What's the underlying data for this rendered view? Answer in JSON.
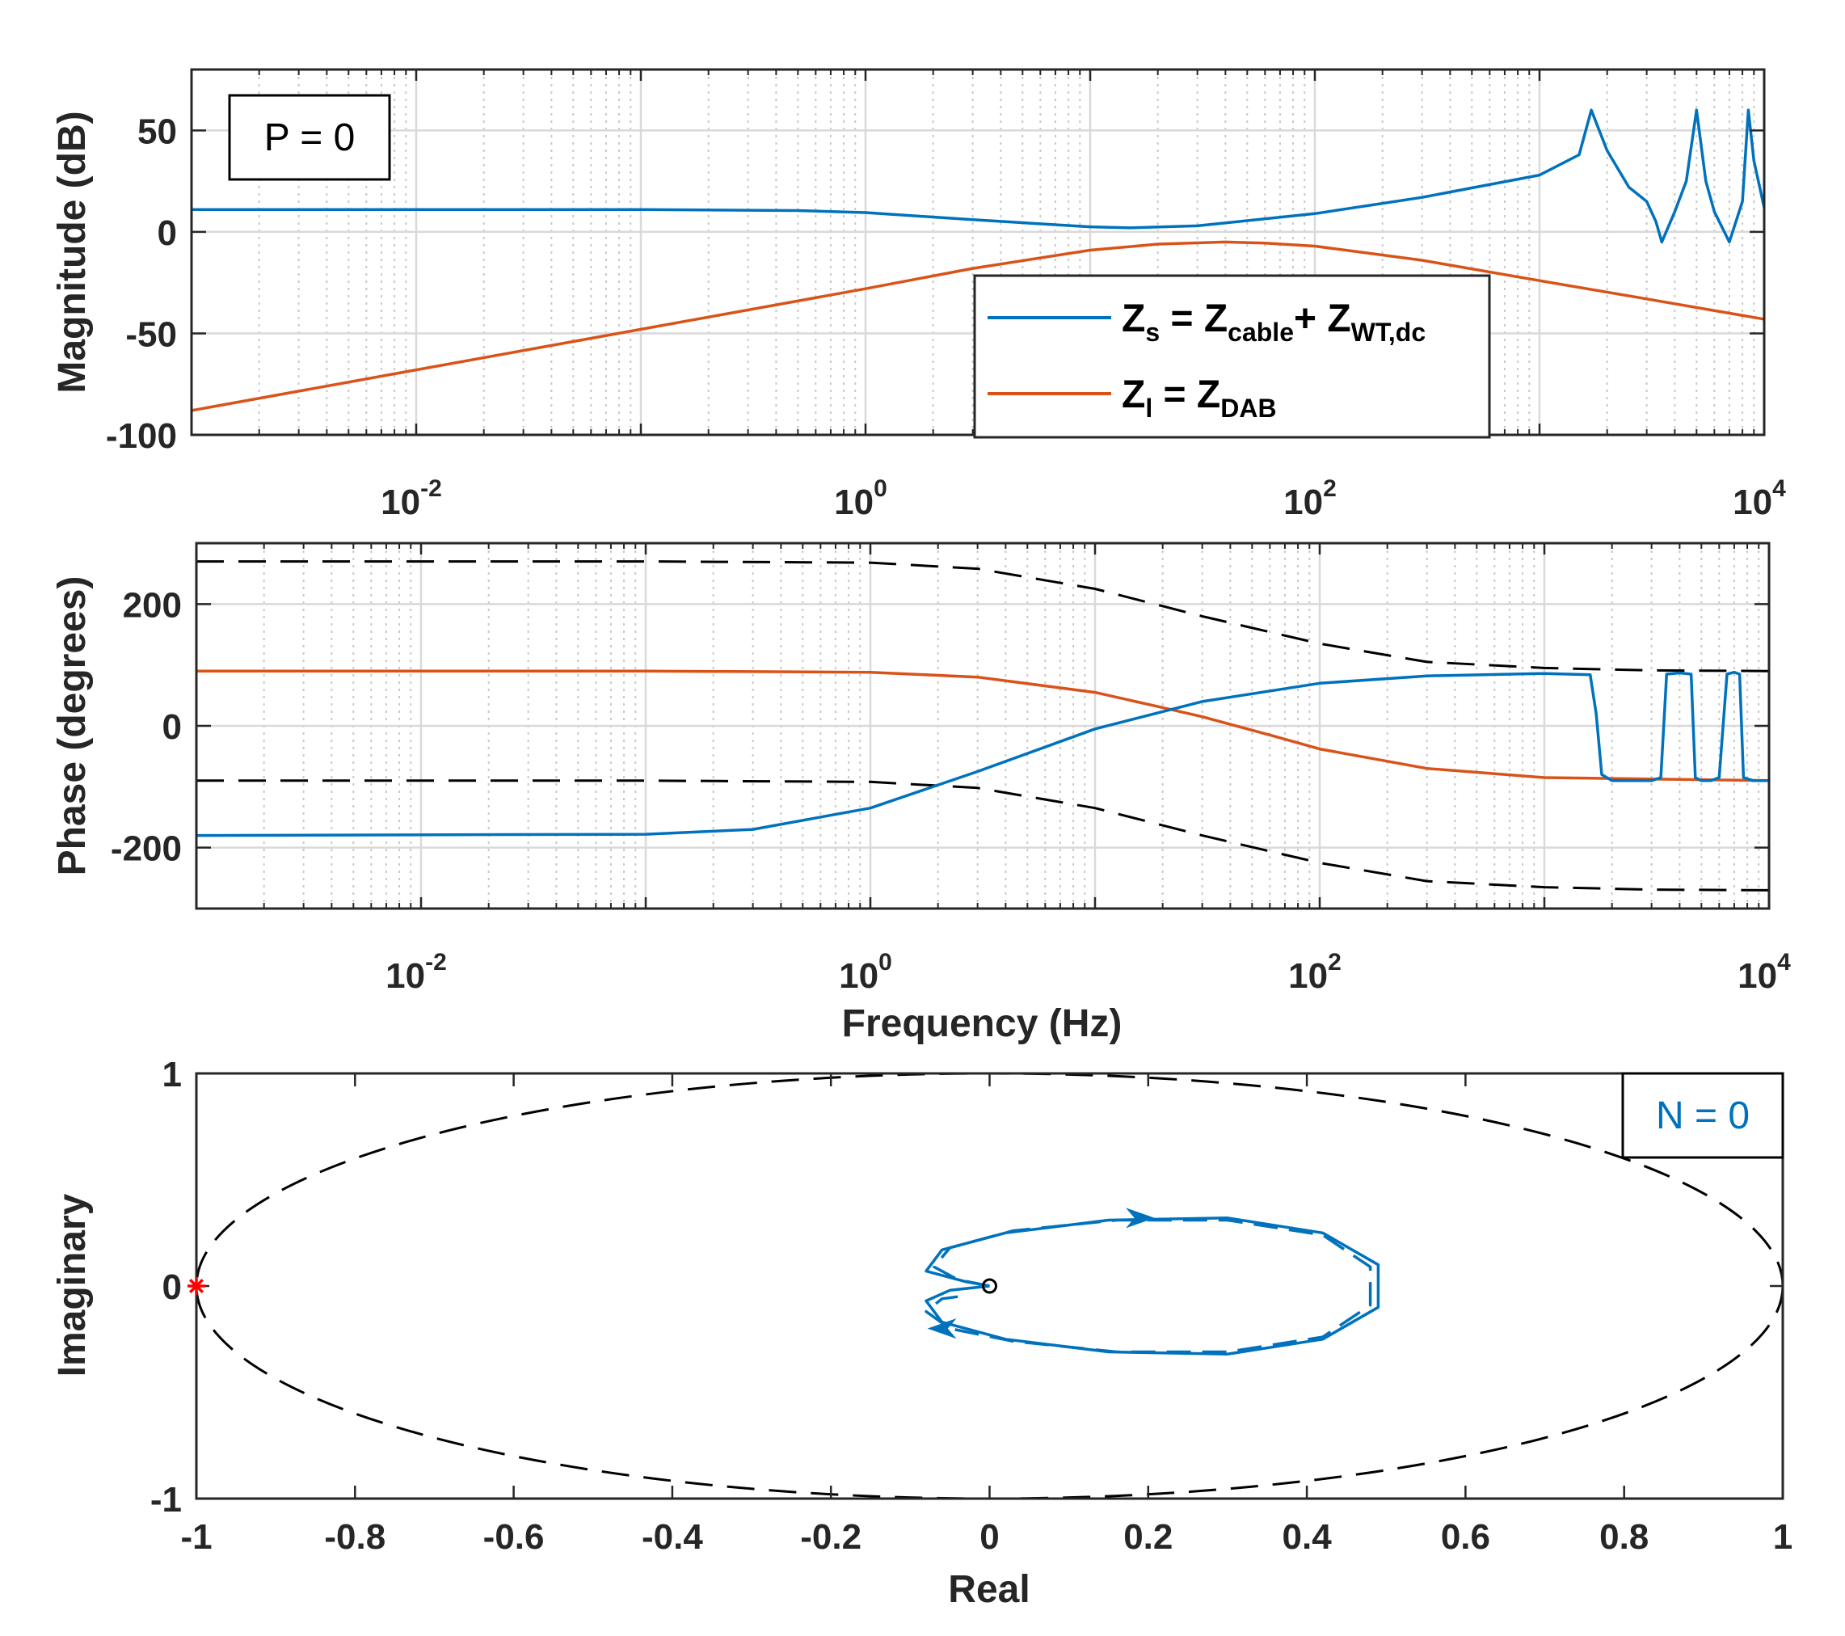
{
  "chart_data": [
    {
      "type": "line",
      "title": "",
      "xlabel": "",
      "ylabel": "Magnitude (dB)",
      "xscale": "log",
      "xlim": [
        0.001,
        10000
      ],
      "ylim": [
        -100,
        80
      ],
      "grid": true,
      "xtick_labels": [
        {
          "value": 0.01,
          "base": "10",
          "exp": "-2"
        },
        {
          "value": 1,
          "base": "10",
          "exp": "0"
        },
        {
          "value": 100,
          "base": "10",
          "exp": "2"
        },
        {
          "value": 10000,
          "base": "10",
          "exp": "4"
        }
      ],
      "ytick_labels": [
        {
          "value": 50,
          "label": "50"
        },
        {
          "value": 0,
          "label": "0"
        },
        {
          "value": -50,
          "label": "-50"
        },
        {
          "value": -100,
          "label": "-100"
        }
      ],
      "annotation": "P = 0",
      "legend": {
        "position": "bottom-right",
        "entries": [
          {
            "main": "Z",
            "sub": "s",
            "mid": " = Z",
            "sub2": "cable",
            "tail": "+ Z",
            "sub3": "WT,dc",
            "color": "#0072BD"
          },
          {
            "main": "Z",
            "sub": "l",
            "mid": " = Z",
            "sub2": "DAB",
            "tail": "",
            "sub3": "",
            "color": "#D95319"
          }
        ]
      },
      "series": [
        {
          "name": "Zs = Zcable + ZWT,dc",
          "color": "#0072BD",
          "x": [
            0.001,
            0.01,
            0.1,
            0.5,
            1,
            3,
            10,
            15,
            30,
            100,
            300,
            1000,
            1500,
            1700,
            2000,
            2500,
            3000,
            3300,
            3500,
            4000,
            4500,
            5000,
            5500,
            6000,
            7000,
            8000,
            8500,
            9000,
            10000
          ],
          "values": [
            11,
            11,
            11,
            10.5,
            9.5,
            6,
            2.5,
            2,
            3,
            9,
            17,
            28,
            38,
            60,
            40,
            22,
            15,
            5,
            -5,
            10,
            25,
            60,
            25,
            10,
            -5,
            15,
            60,
            35,
            12
          ]
        },
        {
          "name": "Zl = ZDAB",
          "color": "#D95319",
          "x": [
            0.001,
            0.01,
            0.1,
            1,
            3,
            10,
            20,
            40,
            60,
            100,
            300,
            1000,
            3000,
            10000
          ],
          "values": [
            -88,
            -68,
            -48,
            -28,
            -18,
            -9,
            -6,
            -5,
            -5.5,
            -7,
            -14,
            -24,
            -33,
            -43
          ]
        }
      ]
    },
    {
      "type": "line",
      "title": "",
      "xlabel": "Frequency (Hz)",
      "ylabel": "Phase (degrees)",
      "xscale": "log",
      "xlim": [
        0.001,
        10000
      ],
      "ylim": [
        -300,
        300
      ],
      "grid": true,
      "xtick_labels": [
        {
          "value": 0.01,
          "base": "10",
          "exp": "-2"
        },
        {
          "value": 1,
          "base": "10",
          "exp": "0"
        },
        {
          "value": 100,
          "base": "10",
          "exp": "2"
        },
        {
          "value": 10000,
          "base": "10",
          "exp": "4"
        }
      ],
      "ytick_labels": [
        {
          "value": 200,
          "label": "200"
        },
        {
          "value": 0,
          "label": "0"
        },
        {
          "value": -200,
          "label": "-200"
        }
      ],
      "series": [
        {
          "name": "upper bound",
          "color": "#000000",
          "dashed": true,
          "x": [
            0.001,
            0.1,
            1,
            3,
            10,
            30,
            100,
            300,
            1000,
            3000,
            10000
          ],
          "values": [
            270,
            270,
            268,
            258,
            225,
            180,
            135,
            105,
            95,
            91,
            90
          ]
        },
        {
          "name": "lower bound",
          "color": "#000000",
          "dashed": true,
          "x": [
            0.001,
            0.1,
            1,
            3,
            10,
            30,
            100,
            300,
            1000,
            3000,
            10000
          ],
          "values": [
            -90,
            -90,
            -92,
            -102,
            -135,
            -180,
            -225,
            -255,
            -265,
            -269,
            -270
          ]
        },
        {
          "name": "Zl = ZDAB phase",
          "color": "#D95319",
          "x": [
            0.001,
            0.1,
            1,
            3,
            10,
            20,
            30,
            60,
            100,
            300,
            1000,
            10000
          ],
          "values": [
            90,
            90,
            88,
            80,
            55,
            30,
            15,
            -15,
            -38,
            -70,
            -85,
            -90
          ]
        },
        {
          "name": "Zs phase",
          "color": "#0072BD",
          "x": [
            0.001,
            0.1,
            0.3,
            1,
            3,
            10,
            30,
            100,
            300,
            1000,
            1600,
            1700,
            1800,
            2000,
            2500,
            3000,
            3300,
            3500,
            4000,
            4500,
            4700,
            5000,
            5500,
            6000,
            6500,
            7000,
            7400,
            7700,
            8500,
            9000,
            9300,
            10000
          ],
          "values": [
            -180,
            -178,
            -170,
            -135,
            -75,
            -5,
            40,
            70,
            82,
            86,
            84,
            20,
            -80,
            -90,
            -90,
            -90,
            -85,
            85,
            87,
            85,
            -85,
            -90,
            -90,
            -85,
            85,
            88,
            85,
            -85,
            -90,
            -90,
            -90,
            -90
          ]
        }
      ]
    },
    {
      "type": "line",
      "title": "",
      "xlabel": "Real",
      "ylabel": "Imaginary",
      "xlim": [
        -1,
        1
      ],
      "ylim": [
        -1,
        1
      ],
      "xtick_labels": [
        "-1",
        "-0.8",
        "-0.6",
        "-0.4",
        "-0.2",
        "0",
        "0.2",
        "0.4",
        "0.6",
        "0.8",
        "1"
      ],
      "ytick_labels": [
        "1",
        "0",
        "-1"
      ],
      "annotation": "N = 0",
      "critical_point": {
        "x": -1,
        "y": 0,
        "marker": "*",
        "color": "#FF0000"
      },
      "series": [
        {
          "name": "unit circle",
          "color": "#000000",
          "dashed": true,
          "shape": "circle",
          "center": [
            0,
            0
          ],
          "radius": 1
        },
        {
          "name": "Nyquist positive",
          "color": "#0072BD",
          "x": [
            0,
            -0.03,
            -0.08,
            -0.06,
            0.02,
            0.15,
            0.3,
            0.42,
            0.49,
            0.49,
            0.42,
            0.3,
            0.15,
            0.02,
            -0.06,
            -0.08,
            -0.05,
            0
          ],
          "values": [
            0,
            0.02,
            0.07,
            0.17,
            0.25,
            0.31,
            0.32,
            0.25,
            0.1,
            -0.1,
            -0.25,
            -0.32,
            -0.31,
            -0.25,
            -0.17,
            -0.07,
            -0.02,
            0
          ]
        },
        {
          "name": "Nyquist negative",
          "color": "#0072BD",
          "dashed": true,
          "x": [
            0,
            -0.04,
            -0.07,
            -0.05,
            0.03,
            0.16,
            0.3,
            0.42,
            0.48,
            0.48,
            0.42,
            0.3,
            0.16,
            0.03,
            -0.05,
            -0.08,
            -0.06,
            -0.04
          ],
          "values": [
            0,
            0.03,
            0.09,
            0.18,
            0.26,
            0.31,
            0.31,
            0.24,
            0.09,
            -0.09,
            -0.24,
            -0.31,
            -0.31,
            -0.26,
            -0.2,
            -0.12,
            -0.06,
            -0.05
          ]
        }
      ]
    }
  ]
}
